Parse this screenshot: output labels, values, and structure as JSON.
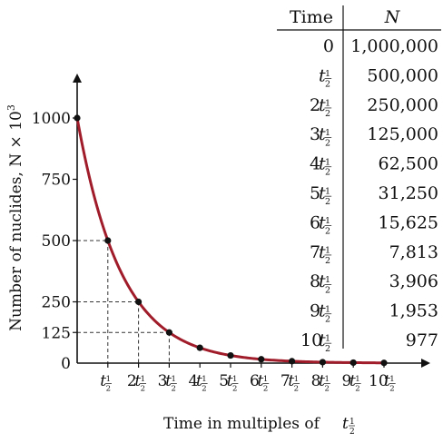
{
  "chart_data": {
    "type": "line",
    "xlabel": "Time in multiples of",
    "xlabel_symbol": "t",
    "ylabel": "Number of nuclides, N × 10",
    "ylabel_exp": "3",
    "xlim": [
      0,
      10
    ],
    "ylim": [
      0,
      1000
    ],
    "y_ticks": [
      0,
      125,
      250,
      500,
      750,
      1000
    ],
    "y_tick_labels": [
      "0",
      "125",
      "250",
      "500",
      "750",
      "1000"
    ],
    "x_ticks": [
      1,
      2,
      3,
      4,
      5,
      6,
      7,
      8,
      9,
      10
    ],
    "x_tick_labels": [
      "",
      "2",
      "3",
      "4",
      "5",
      "6",
      "7",
      "8",
      "9",
      "10"
    ],
    "half_life_symbol": "t",
    "fraction_num": "1",
    "fraction_den": "2",
    "curve_color": "#a01c2a",
    "point_color": "#111111",
    "guide_points": [
      1,
      2,
      3
    ],
    "points": [
      {
        "x": 0,
        "y": 1000
      },
      {
        "x": 1,
        "y": 500
      },
      {
        "x": 2,
        "y": 250
      },
      {
        "x": 3,
        "y": 125
      },
      {
        "x": 4,
        "y": 62.5
      },
      {
        "x": 5,
        "y": 31.25
      },
      {
        "x": 6,
        "y": 15.625
      },
      {
        "x": 7,
        "y": 7.813
      },
      {
        "x": 8,
        "y": 3.906
      },
      {
        "x": 9,
        "y": 1.953
      },
      {
        "x": 10,
        "y": 0.977
      }
    ]
  },
  "table": {
    "headers": [
      "Time",
      "N"
    ],
    "rows": [
      {
        "coef": "0",
        "half_life": false,
        "n": "1,000,000"
      },
      {
        "coef": "",
        "half_life": true,
        "n": "500,000"
      },
      {
        "coef": "2",
        "half_life": true,
        "n": "250,000"
      },
      {
        "coef": "3",
        "half_life": true,
        "n": "125,000"
      },
      {
        "coef": "4",
        "half_life": true,
        "n": "62,500"
      },
      {
        "coef": "5",
        "half_life": true,
        "n": "31,250"
      },
      {
        "coef": "6",
        "half_life": true,
        "n": "15,625"
      },
      {
        "coef": "7",
        "half_life": true,
        "n": "7,813"
      },
      {
        "coef": "8",
        "half_life": true,
        "n": "3,906"
      },
      {
        "coef": "9",
        "half_life": true,
        "n": "1,953"
      },
      {
        "coef": "10",
        "half_life": true,
        "n": "977"
      }
    ]
  }
}
